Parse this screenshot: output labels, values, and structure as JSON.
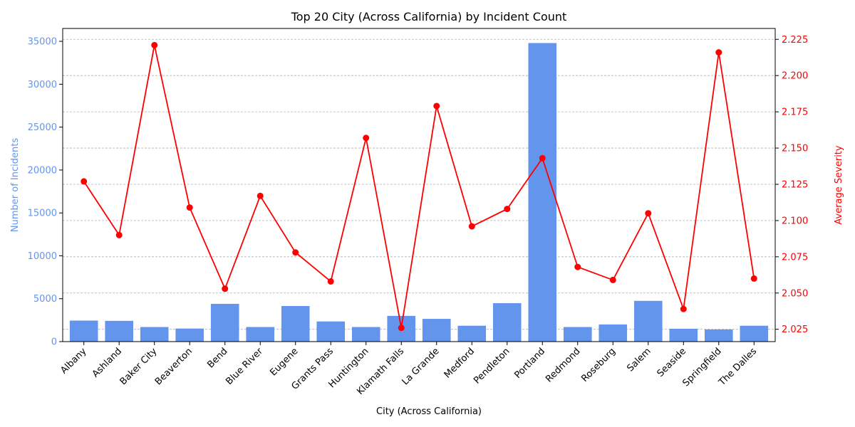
{
  "chart_data": {
    "type": "bar",
    "title": "Top 20 City (Across California) by Incident Count",
    "xlabel": "City (Across California)",
    "ylabel": "Number of Incidents",
    "y2label": "Average Severity",
    "categories": [
      "Albany",
      "Ashland",
      "Baker City",
      "Beaverton",
      "Bend",
      "Blue River",
      "Eugene",
      "Grants Pass",
      "Huntington",
      "Klamath Falls",
      "La Grande",
      "Medford",
      "Pendleton",
      "Portland",
      "Redmond",
      "Roseburg",
      "Salem",
      "Seaside",
      "Springfield",
      "The Dalles"
    ],
    "series": [
      {
        "type": "bar",
        "axis": "left",
        "values": [
          2450,
          2420,
          1700,
          1520,
          4400,
          1700,
          4150,
          2350,
          1700,
          3000,
          2650,
          1850,
          4480,
          34800,
          1700,
          2000,
          4750,
          1500,
          1420,
          1850
        ]
      },
      {
        "type": "line",
        "axis": "right",
        "values": [
          2.127,
          2.09,
          2.221,
          2.109,
          2.053,
          2.117,
          2.078,
          2.058,
          2.157,
          2.026,
          2.179,
          2.096,
          2.108,
          2.143,
          2.068,
          2.059,
          2.105,
          2.039,
          2.216,
          2.06
        ]
      }
    ],
    "ylim": [
      0,
      36500
    ],
    "y2lim": [
      2.0165,
      2.2325
    ],
    "yticks": [
      0,
      5000,
      10000,
      15000,
      20000,
      25000,
      30000,
      35000
    ],
    "y2ticks": [
      2.025,
      2.05,
      2.075,
      2.1,
      2.125,
      2.15,
      2.175,
      2.2,
      2.225
    ],
    "y2tick_labels": [
      "2.025",
      "2.050",
      "2.075",
      "2.100",
      "2.125",
      "2.150",
      "2.175",
      "2.200",
      "2.225"
    ],
    "grid": "horizontal dashed (right axis)",
    "colors": {
      "bars": "#6495ED",
      "line": "#FF0000",
      "left_axis": "#6495ED",
      "right_axis": "#FF0000"
    }
  }
}
